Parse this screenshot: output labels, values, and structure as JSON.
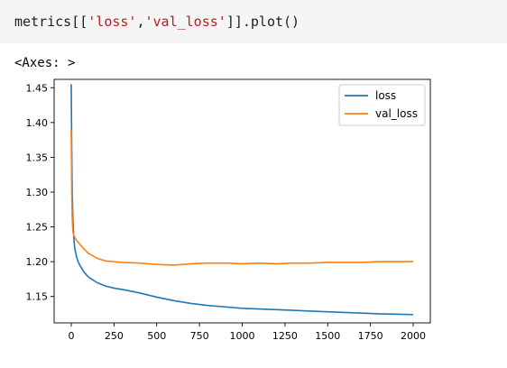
{
  "code_cell": {
    "prefix": "metrics[[",
    "str1": "'loss'",
    "comma": ",",
    "str2": "'val_loss'",
    "suffix": "]].plot()"
  },
  "output": {
    "repr": "<Axes: >"
  },
  "chart_data": {
    "type": "line",
    "xlim": [
      -100,
      2100
    ],
    "ylim": [
      1.112,
      1.462
    ],
    "xticks": [
      0,
      250,
      500,
      750,
      1000,
      1250,
      1500,
      1750,
      2000
    ],
    "yticks": [
      1.15,
      1.2,
      1.25,
      1.3,
      1.35,
      1.4,
      1.45
    ],
    "xtick_labels": [
      "0",
      "250",
      "500",
      "750",
      "1000",
      "1250",
      "1500",
      "1750",
      "2000"
    ],
    "ytick_labels": [
      "1.15",
      "1.20",
      "1.25",
      "1.30",
      "1.35",
      "1.40",
      "1.45"
    ],
    "grid": false,
    "legend_position": "top-right",
    "series": [
      {
        "name": "loss",
        "color": "#1f77b4",
        "x": [
          0,
          3,
          6,
          10,
          15,
          20,
          30,
          40,
          50,
          75,
          100,
          150,
          200,
          250,
          300,
          400,
          500,
          600,
          700,
          800,
          900,
          1000,
          1100,
          1200,
          1300,
          1400,
          1500,
          1600,
          1700,
          1800,
          1900,
          2000
        ],
        "values": [
          1.455,
          1.36,
          1.3,
          1.26,
          1.235,
          1.22,
          1.208,
          1.2,
          1.195,
          1.185,
          1.178,
          1.17,
          1.165,
          1.162,
          1.16,
          1.155,
          1.149,
          1.144,
          1.14,
          1.137,
          1.135,
          1.133,
          1.132,
          1.131,
          1.13,
          1.129,
          1.128,
          1.127,
          1.126,
          1.125,
          1.1245,
          1.124
        ]
      },
      {
        "name": "val_loss",
        "color": "#ff7f0e",
        "x": [
          0,
          3,
          6,
          10,
          15,
          20,
          30,
          40,
          50,
          75,
          100,
          150,
          200,
          250,
          300,
          400,
          500,
          600,
          700,
          800,
          900,
          1000,
          1100,
          1200,
          1300,
          1400,
          1500,
          1600,
          1700,
          1800,
          1900,
          2000
        ],
        "values": [
          1.39,
          1.3,
          1.26,
          1.243,
          1.238,
          1.235,
          1.231,
          1.228,
          1.225,
          1.218,
          1.212,
          1.205,
          1.201,
          1.2,
          1.199,
          1.198,
          1.196,
          1.195,
          1.197,
          1.198,
          1.198,
          1.197,
          1.198,
          1.197,
          1.198,
          1.198,
          1.199,
          1.199,
          1.199,
          1.2,
          1.2,
          1.2
        ]
      }
    ]
  }
}
